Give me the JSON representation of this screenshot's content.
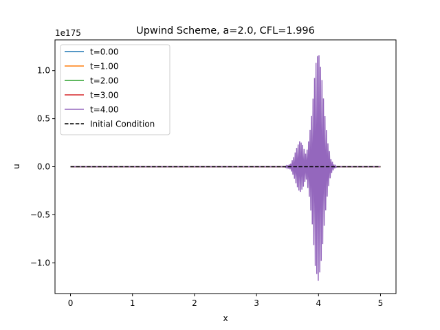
{
  "chart_data": {
    "type": "line",
    "title": "Upwind Scheme, a=2.0, CFL=1.996",
    "xlabel": "x",
    "ylabel": "u",
    "y_offset_text": "1e175",
    "xlim": [
      -0.25,
      5.25
    ],
    "ylim": [
      -1.32,
      1.32
    ],
    "x_ticks": [
      0,
      1,
      2,
      3,
      4,
      5
    ],
    "x_tick_labels": [
      "0",
      "1",
      "2",
      "3",
      "4",
      "5"
    ],
    "y_ticks": [
      -1.0,
      -0.5,
      0.0,
      0.5,
      1.0
    ],
    "y_tick_labels": [
      "−1.0",
      "−0.5",
      "0.0",
      "0.5",
      "1.0"
    ],
    "grid": false,
    "legend_position": "upper-left",
    "series": [
      {
        "name": "t=0.00",
        "color": "#1f77b4",
        "style": "solid",
        "x": [
          0,
          5
        ],
        "y": [
          0,
          0
        ]
      },
      {
        "name": "t=1.00",
        "color": "#ff7f0e",
        "style": "solid",
        "x": [
          0,
          5
        ],
        "y": [
          0,
          0
        ]
      },
      {
        "name": "t=2.00",
        "color": "#2ca02c",
        "style": "solid",
        "x": [
          0,
          5
        ],
        "y": [
          0,
          0
        ]
      },
      {
        "name": "t=3.00",
        "color": "#d62728",
        "style": "solid",
        "x": [
          0,
          5
        ],
        "y": [
          0,
          0
        ]
      },
      {
        "name": "t=4.00",
        "color": "#9467bd",
        "style": "oscillating envelope",
        "envelope_x": [
          0,
          3.45,
          3.55,
          3.6,
          3.65,
          3.7,
          3.75,
          3.8,
          3.85,
          3.9,
          3.95,
          4.0,
          4.05,
          4.1,
          4.15,
          4.2,
          4.25,
          4.3,
          5.0
        ],
        "envelope_y": [
          0,
          0,
          0.03,
          0.1,
          0.2,
          0.27,
          0.22,
          0.12,
          0.3,
          0.6,
          1.05,
          1.2,
          0.95,
          0.55,
          0.25,
          0.08,
          0.02,
          0,
          0
        ]
      },
      {
        "name": "Initial Condition",
        "color": "#000000",
        "style": "dashed",
        "x": [
          0,
          5
        ],
        "y": [
          0,
          0
        ]
      }
    ]
  }
}
